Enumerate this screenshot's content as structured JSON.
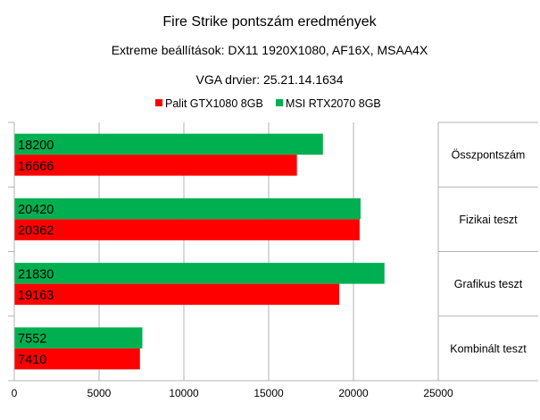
{
  "chart_data": {
    "type": "bar",
    "orientation": "horizontal",
    "title": "Fire Strike pontszám eredmények",
    "subtitle": "Extreme beállítások: DX11 1920X1080, AF16X, MSAA4X",
    "subtitle2": "VGA drvier: 25.21.14.1634",
    "categories": [
      "Összpontszám",
      "Fizikai teszt",
      "Grafikus teszt",
      "Kombinált teszt"
    ],
    "series": [
      {
        "name": "Palit GTX1080 8GB",
        "color": "#ff0000",
        "values": [
          16666,
          20362,
          19163,
          7410
        ]
      },
      {
        "name": "MSI RTX2070 8GB",
        "color": "#00b050",
        "values": [
          18200,
          20420,
          21830,
          7552
        ]
      }
    ],
    "xlim": [
      0,
      25000
    ],
    "xticks": [
      "0",
      "5000",
      "10000",
      "15000",
      "20000",
      "25000"
    ],
    "grid": true,
    "legend": "top",
    "category_axis": "right"
  }
}
